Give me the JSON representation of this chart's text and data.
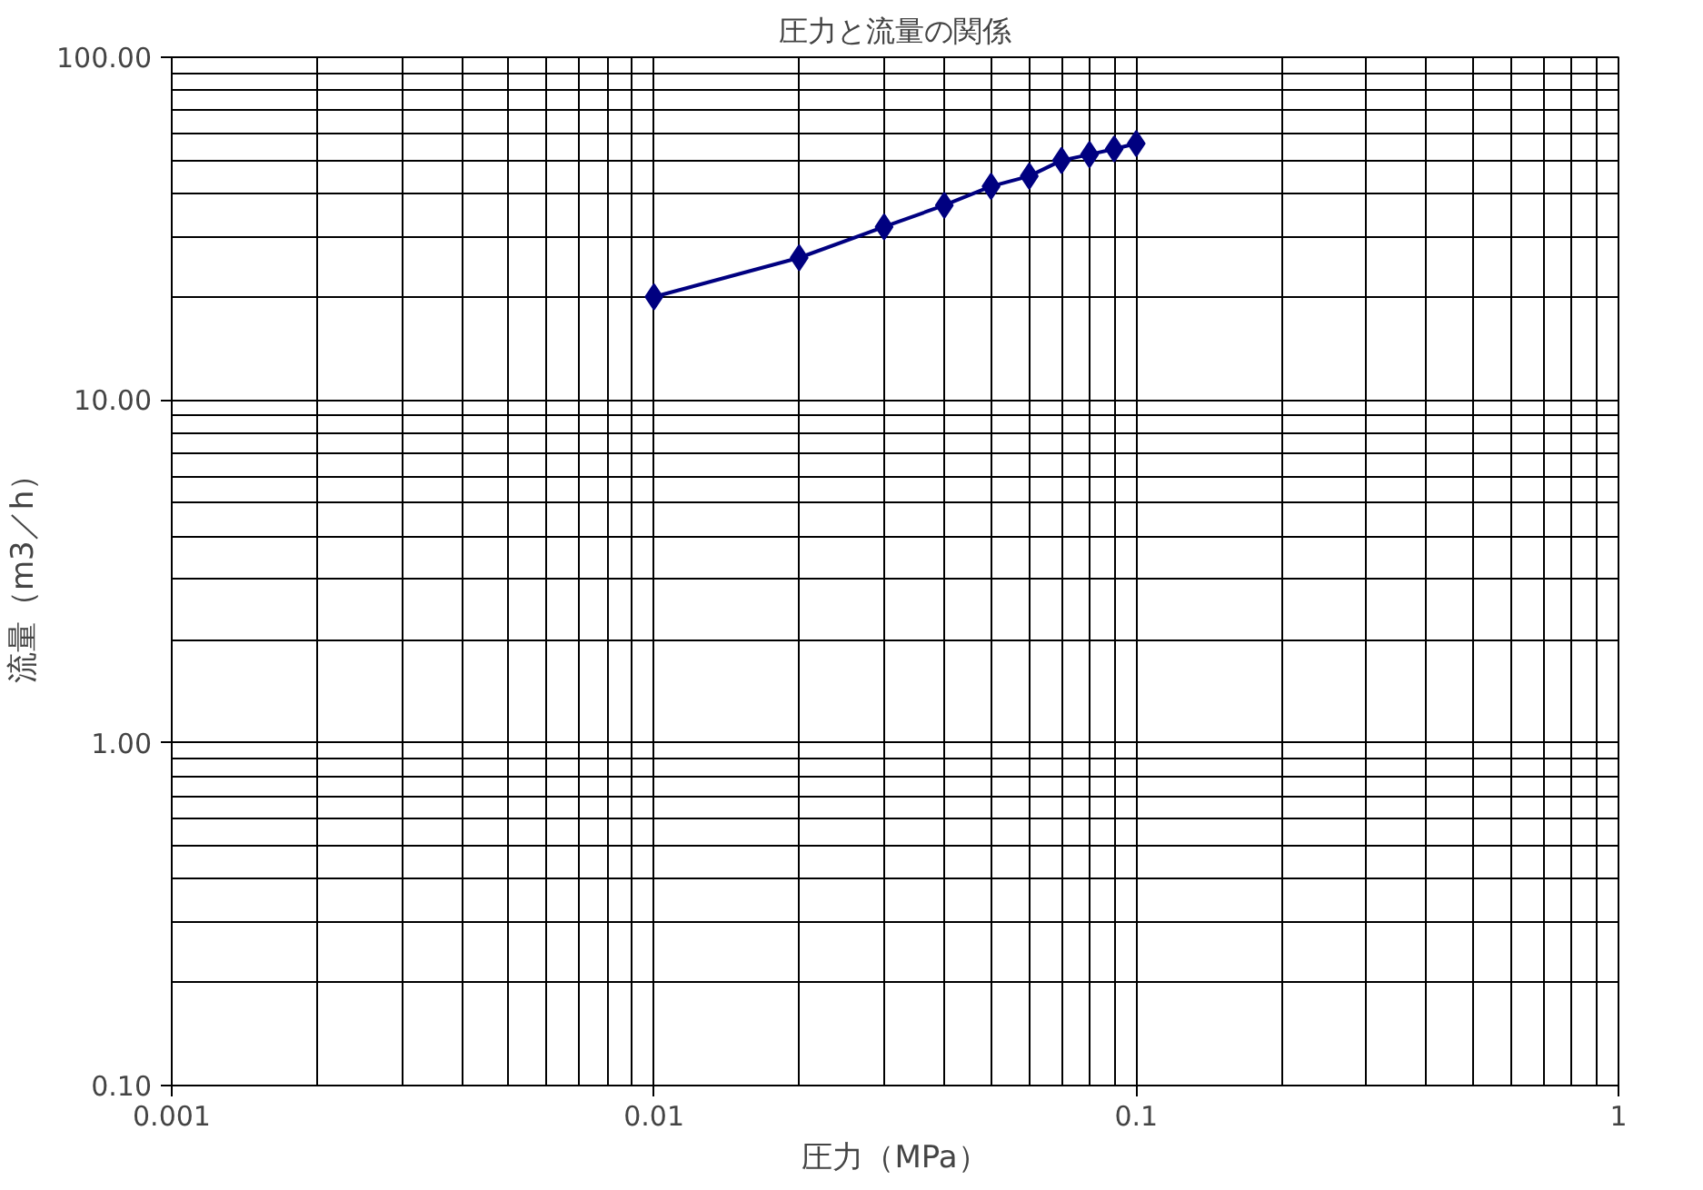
{
  "chart_data": {
    "type": "line",
    "title": "圧力と流量の関係",
    "xlabel": "圧力（MPa）",
    "ylabel": "流量（m3／h）",
    "log": "xy",
    "x": [
      0.01,
      0.02,
      0.03,
      0.04,
      0.05,
      0.06,
      0.07,
      0.08,
      0.09,
      0.1
    ],
    "series": [
      {
        "color": "#000080",
        "values": [
          20,
          26,
          32,
          37,
          42,
          45,
          50,
          52,
          54,
          56
        ]
      }
    ],
    "xlim": [
      0.001,
      1
    ],
    "ylim": [
      0.1,
      100
    ],
    "xticks": [
      0.001,
      0.01,
      0.1,
      1
    ],
    "yticks": [
      {
        "value": 0.1,
        "label": "0.10"
      },
      {
        "value": 1,
        "label": "1.00"
      },
      {
        "value": 10,
        "label": "10.00"
      },
      {
        "value": 100,
        "label": "100.00"
      }
    ],
    "grid": true,
    "marker": "diamond",
    "line_style": "solid"
  }
}
